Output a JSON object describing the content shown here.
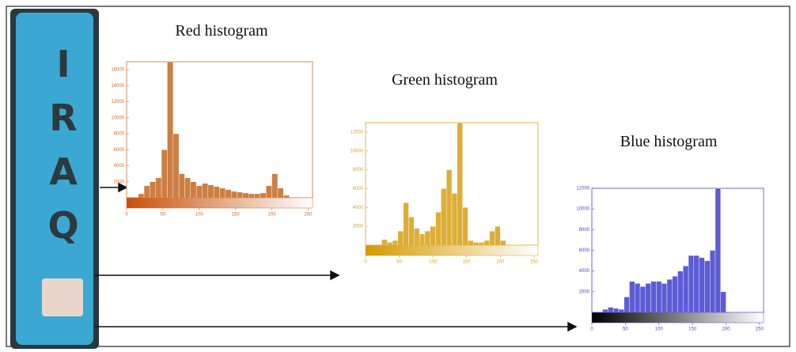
{
  "plate": {
    "text": "IRAQ"
  },
  "chart_data": [
    {
      "type": "histogram",
      "title": "Red histogram",
      "color": "#c8702e",
      "colorbar_color": "#c8500a",
      "bins": [
        0,
        8,
        16,
        24,
        32,
        40,
        48,
        56,
        64,
        72,
        80,
        88,
        96,
        104,
        112,
        120,
        128,
        136,
        144,
        152,
        160,
        168,
        176,
        184,
        192,
        200,
        208,
        216,
        224,
        232,
        240,
        248,
        256
      ],
      "values": [
        0,
        0,
        500,
        1500,
        2000,
        2500,
        6000,
        17000,
        8000,
        3000,
        2500,
        2000,
        1500,
        1800,
        1600,
        1400,
        1200,
        1000,
        800,
        700,
        600,
        500,
        500,
        600,
        1500,
        3000,
        1200,
        300,
        0,
        0,
        0,
        0
      ],
      "xlim": [
        0,
        256
      ],
      "ylim": [
        0,
        17000
      ],
      "xticks": [
        0,
        50,
        100,
        150,
        200,
        250
      ],
      "yticks": [
        2000,
        4000,
        6000,
        8000,
        10000,
        12000,
        14000,
        16000
      ]
    },
    {
      "type": "histogram",
      "title": "Green histogram",
      "color": "#d9a521",
      "colorbar_color": "#d49a00",
      "bins": [
        0,
        8,
        16,
        24,
        32,
        40,
        48,
        56,
        64,
        72,
        80,
        88,
        96,
        104,
        112,
        120,
        128,
        136,
        144,
        152,
        160,
        168,
        176,
        184,
        192,
        200,
        208,
        216,
        224,
        232,
        240,
        248,
        256
      ],
      "values": [
        0,
        0,
        0,
        600,
        300,
        500,
        1500,
        4500,
        3000,
        1800,
        1200,
        1500,
        2000,
        3500,
        6000,
        8000,
        5500,
        13000,
        4000,
        500,
        300,
        300,
        500,
        1500,
        2000,
        500,
        0,
        0,
        0,
        0,
        0,
        0
      ],
      "xlim": [
        0,
        256
      ],
      "ylim": [
        0,
        13000
      ],
      "xticks": [
        0,
        50,
        100,
        150,
        200,
        250
      ],
      "yticks": [
        2000,
        4000,
        6000,
        8000,
        10000,
        12000
      ]
    },
    {
      "type": "histogram",
      "title": "Blue histogram",
      "color": "#4a4ad0",
      "colorbar_color": "#000000",
      "bins": [
        0,
        8,
        16,
        24,
        32,
        40,
        48,
        56,
        64,
        72,
        80,
        88,
        96,
        104,
        112,
        120,
        128,
        136,
        144,
        152,
        160,
        168,
        176,
        184,
        192,
        200,
        208,
        216,
        224,
        232,
        240,
        248,
        256
      ],
      "values": [
        0,
        0,
        300,
        500,
        400,
        300,
        1500,
        3000,
        2800,
        2500,
        2800,
        3000,
        3000,
        2800,
        3200,
        3500,
        4000,
        4500,
        5500,
        5500,
        5300,
        5000,
        6000,
        12000,
        2000,
        0,
        0,
        0,
        0,
        0,
        0,
        0
      ],
      "xlim": [
        0,
        256
      ],
      "ylim": [
        0,
        12000
      ],
      "xticks": [
        0,
        50,
        100,
        150,
        200,
        250
      ],
      "yticks": [
        2000,
        4000,
        6000,
        8000,
        10000,
        12000
      ]
    }
  ]
}
